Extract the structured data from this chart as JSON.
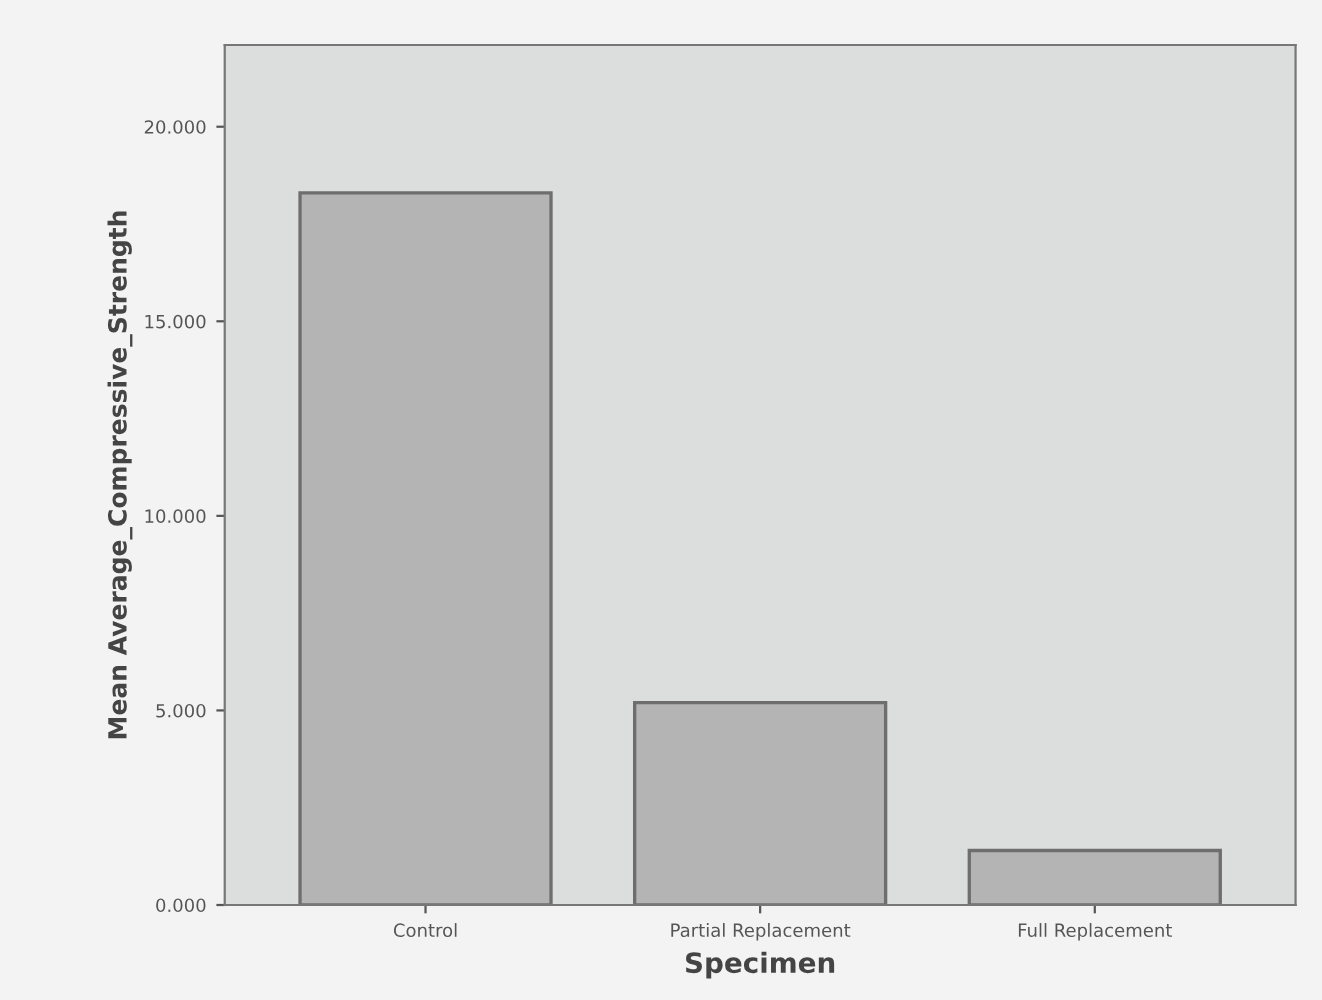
{
  "chart_data": {
    "type": "bar",
    "xlabel": "Specimen",
    "ylabel": "Mean Average_Compressive_Strength",
    "categories": [
      "Control",
      "Partial Replacement",
      "Full Replacement"
    ],
    "values": [
      18.3,
      5.2,
      1.4
    ],
    "color": "#b4b4b4",
    "ylim": [
      0,
      22.1
    ],
    "yticks": [
      {
        "value": 0,
        "label": "0.000"
      },
      {
        "value": 5,
        "label": "5.000"
      },
      {
        "value": 10,
        "label": "10.000"
      },
      {
        "value": 15,
        "label": "15.000"
      },
      {
        "value": 20,
        "label": "20.000"
      }
    ],
    "grid": false
  }
}
